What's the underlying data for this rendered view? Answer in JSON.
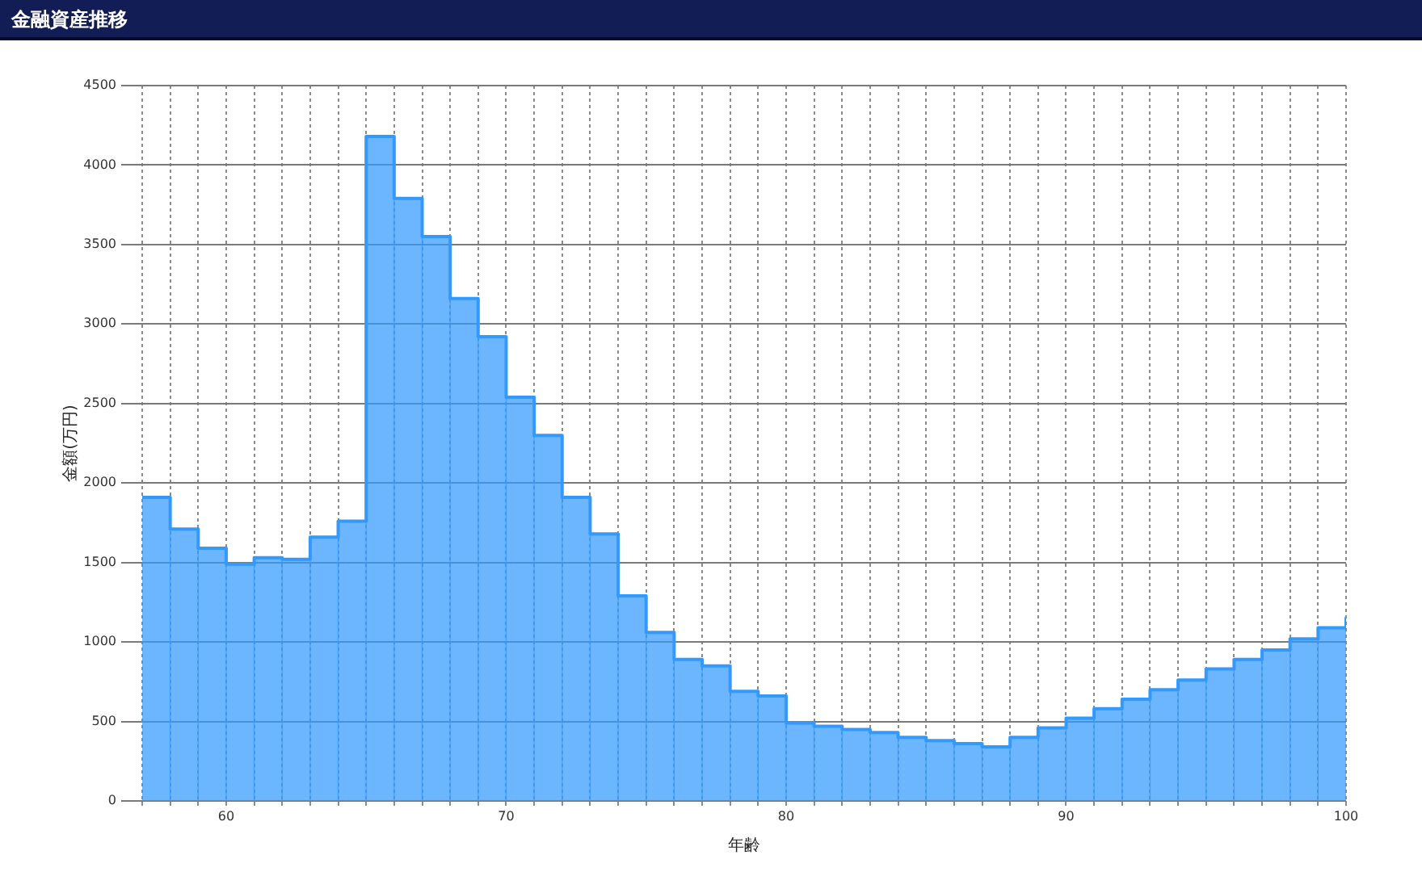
{
  "chart_data": {
    "type": "histogram",
    "title": "金融資産推移",
    "xlabel": "年齢",
    "ylabel": "金額(万円)",
    "bins": [
      57,
      58,
      59,
      60,
      61,
      62,
      63,
      64,
      65,
      66,
      67,
      68,
      69,
      70,
      71,
      72,
      73,
      74,
      75,
      76,
      77,
      78,
      79,
      80,
      81,
      82,
      83,
      84,
      85,
      86,
      87,
      88,
      89,
      90,
      91,
      92,
      93,
      94,
      95,
      96,
      97,
      98,
      99,
      100
    ],
    "series": [
      {
        "color": "#3399ff",
        "values": [
          1910,
          1710,
          1590,
          1490,
          1530,
          1520,
          1660,
          1760,
          4180,
          3790,
          3550,
          3160,
          2920,
          2540,
          2300,
          1910,
          1680,
          1290,
          1060,
          890,
          850,
          690,
          660,
          490,
          470,
          450,
          430,
          400,
          380,
          360,
          340,
          400,
          460,
          520,
          580,
          640,
          700,
          760,
          830,
          890,
          950,
          1020,
          1090
        ]
      },
      {
        "type": "step",
        "color": "#3399ff",
        "x": [
          57,
          58,
          59,
          60,
          61,
          62,
          63,
          64,
          65,
          66,
          67,
          68,
          69,
          70,
          71,
          72,
          73,
          74,
          75,
          76,
          77,
          78,
          79,
          80,
          81,
          82,
          83,
          84,
          85,
          86,
          87,
          88,
          89,
          90,
          91,
          92,
          93,
          94,
          95,
          96,
          97,
          98,
          99,
          100
        ],
        "values": [
          1910,
          1710,
          1590,
          1490,
          1530,
          1520,
          1660,
          1760,
          4180,
          3790,
          3550,
          3160,
          2920,
          2540,
          2300,
          1910,
          1680,
          1290,
          1060,
          890,
          850,
          690,
          660,
          490,
          470,
          450,
          430,
          400,
          380,
          360,
          340,
          400,
          460,
          520,
          580,
          640,
          700,
          760,
          830,
          890,
          950,
          1020,
          1090,
          1150
        ]
      }
    ],
    "xlim": [
      57,
      100
    ],
    "xticks": [
      {
        "value": 57,
        "label": null
      },
      {
        "value": 58,
        "label": null
      },
      {
        "value": 59,
        "label": null
      },
      60,
      {
        "value": 61,
        "label": null
      },
      {
        "value": 62,
        "label": null
      },
      {
        "value": 63,
        "label": null
      },
      {
        "value": 64,
        "label": null
      },
      {
        "value": 65,
        "label": null
      },
      {
        "value": 66,
        "label": null
      },
      {
        "value": 67,
        "label": null
      },
      {
        "value": 68,
        "label": null
      },
      {
        "value": 69,
        "label": null
      },
      70,
      {
        "value": 71,
        "label": null
      },
      {
        "value": 72,
        "label": null
      },
      {
        "value": 73,
        "label": null
      },
      {
        "value": 74,
        "label": null
      },
      {
        "value": 75,
        "label": null
      },
      {
        "value": 76,
        "label": null
      },
      {
        "value": 77,
        "label": null
      },
      {
        "value": 78,
        "label": null
      },
      {
        "value": 79,
        "label": null
      },
      80,
      {
        "value": 81,
        "label": null
      },
      {
        "value": 82,
        "label": null
      },
      {
        "value": 83,
        "label": null
      },
      {
        "value": 84,
        "label": null
      },
      {
        "value": 85,
        "label": null
      },
      {
        "value": 86,
        "label": null
      },
      {
        "value": 87,
        "label": null
      },
      {
        "value": 88,
        "label": null
      },
      {
        "value": 89,
        "label": null
      },
      90,
      {
        "value": 91,
        "label": null
      },
      {
        "value": 92,
        "label": null
      },
      {
        "value": 93,
        "label": null
      },
      {
        "value": 94,
        "label": null
      },
      {
        "value": 95,
        "label": null
      },
      {
        "value": 96,
        "label": null
      },
      {
        "value": 97,
        "label": null
      },
      {
        "value": 98,
        "label": null
      },
      {
        "value": 99,
        "label": null
      },
      100
    ],
    "ylim": [
      0,
      4500
    ],
    "yticks": [
      0,
      500,
      1000,
      1500,
      2000,
      2500,
      3000,
      3500,
      4000,
      4500
    ],
    "grid": true,
    "legend": false,
    "marker": "none",
    "line_style": "solid"
  }
}
